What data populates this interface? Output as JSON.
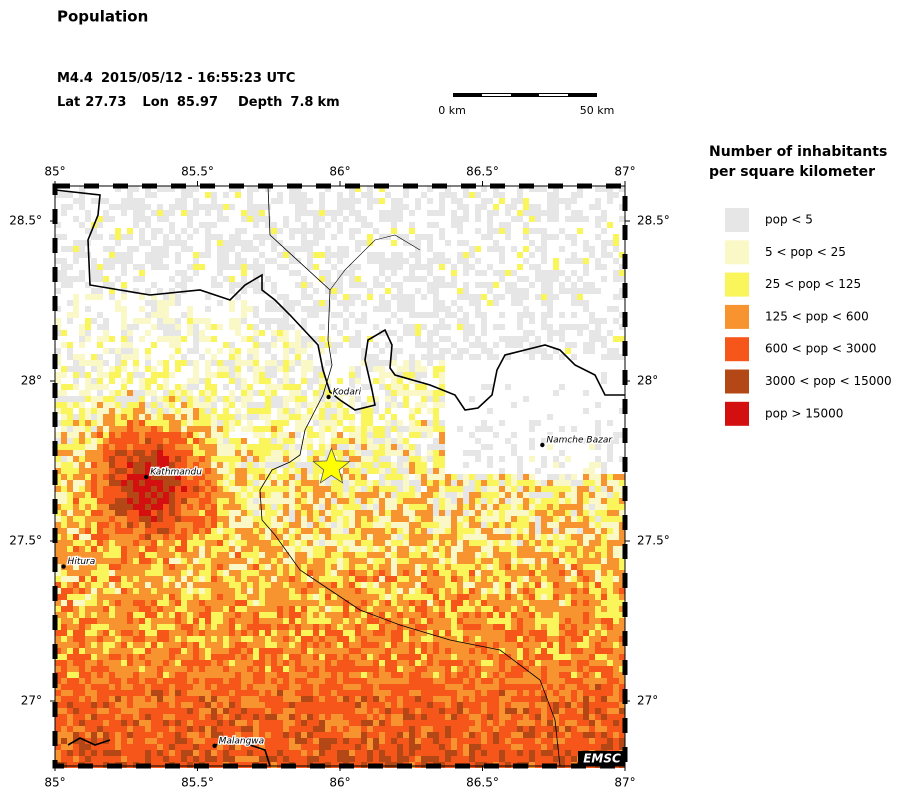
{
  "header": {
    "title": "Population",
    "event": {
      "magnitude": "M4.4",
      "datetime": "2015/05/12 - 16:55:23 UTC",
      "lat_label": "Lat",
      "lat": 27.73,
      "lon_label": "Lon",
      "lon": 85.97,
      "depth_label": "Depth",
      "depth": 7.8,
      "depth_unit": "km"
    },
    "scale_bar": {
      "start": "0 km",
      "end": "50 km"
    }
  },
  "map": {
    "lon_ticks": [
      {
        "value": 85,
        "label": "85°"
      },
      {
        "value": 85.5,
        "label": "85.5°"
      },
      {
        "value": 86,
        "label": "86°"
      },
      {
        "value": 86.5,
        "label": "86.5°"
      },
      {
        "value": 87,
        "label": "87°"
      }
    ],
    "lat_ticks": [
      {
        "value": 28.5,
        "label": "28.5°"
      },
      {
        "value": 28,
        "label": "28°"
      },
      {
        "value": 27.5,
        "label": "27.5°"
      },
      {
        "value": 27,
        "label": "27°"
      }
    ],
    "places": [
      {
        "name": "Kodari",
        "lon": 85.96,
        "lat": 27.95
      },
      {
        "name": "Kathmandu",
        "lon": 85.32,
        "lat": 27.7
      },
      {
        "name": "Hitura",
        "lon": 85.03,
        "lat": 27.42
      },
      {
        "name": "Malangwa",
        "lon": 85.56,
        "lat": 26.86
      },
      {
        "name": "Namche Bazar",
        "lon": 86.71,
        "lat": 27.8
      }
    ],
    "credit": "EMSC"
  },
  "legend": {
    "title": [
      "Number of inhabitants",
      "per square kilometer"
    ],
    "items": [
      {
        "label": "pop < 5",
        "color": "#e6e6e6"
      },
      {
        "label": "5 < pop < 25",
        "color": "#fbf8c8"
      },
      {
        "label": "25 < pop < 125",
        "color": "#faf55a"
      },
      {
        "label": "125 < pop < 600",
        "color": "#f89430"
      },
      {
        "label": "600 < pop < 3000",
        "color": "#f6561a"
      },
      {
        "label": "3000 < pop < 15000",
        "color": "#b44716"
      },
      {
        "label": "pop > 15000",
        "color": "#d40f10"
      }
    ]
  }
}
